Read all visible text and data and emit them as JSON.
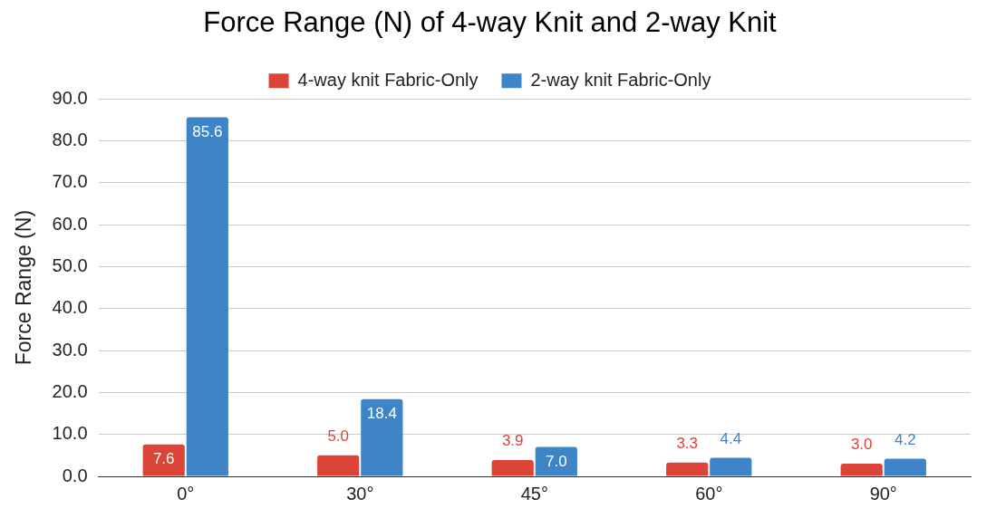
{
  "chart_data": {
    "type": "bar",
    "title": "Force Range (N) of 4-way Knit and 2-way Knit",
    "ylabel": "Force Range (N)",
    "categories": [
      "0°",
      "30°",
      "45°",
      "60°",
      "90°"
    ],
    "series": [
      {
        "name": "4-way knit Fabric-Only",
        "color": "#db4437",
        "values": [
          7.6,
          5.0,
          3.9,
          3.3,
          3.0
        ],
        "value_labels": [
          "7.6",
          "5.0",
          "3.9",
          "3.3",
          "3.0"
        ]
      },
      {
        "name": "2-way knit Fabric-Only",
        "color": "#3d85c6",
        "values": [
          85.6,
          18.4,
          7.0,
          4.4,
          4.2
        ],
        "value_labels": [
          "85.6",
          "18.4",
          "7.0",
          "4.4",
          "4.2"
        ]
      }
    ],
    "ylim": [
      0,
      90
    ],
    "yticks": [
      {
        "value": 0,
        "label": "0.0"
      },
      {
        "value": 10,
        "label": "10.0"
      },
      {
        "value": 20,
        "label": "20.0"
      },
      {
        "value": 30,
        "label": "30.0"
      },
      {
        "value": 40,
        "label": "40.0"
      },
      {
        "value": 50,
        "label": "50.0"
      },
      {
        "value": 60,
        "label": "60.0"
      },
      {
        "value": 70,
        "label": "70.0"
      },
      {
        "value": 80,
        "label": "80.0"
      },
      {
        "value": 90,
        "label": "90.0"
      }
    ],
    "grid": "y",
    "legend": "top"
  }
}
